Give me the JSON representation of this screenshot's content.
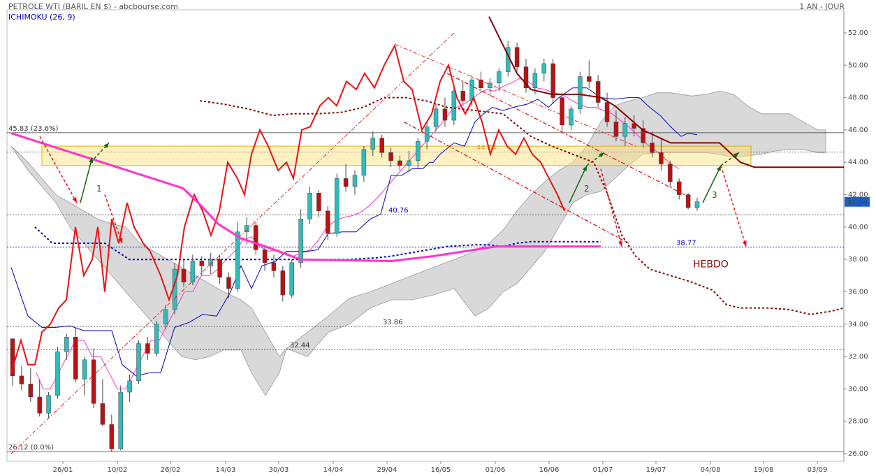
{
  "header": {
    "title": "PETROLE WTI (BARIL EN $) - abcbourse.com",
    "indicator": "ICHIMOKU (26, 9)",
    "period": "1 AN - JOUR"
  },
  "chart_data": {
    "type": "candlestick",
    "ylim": [
      26,
      53
    ],
    "y_ticks": [
      "52.00",
      "50.00",
      "48.00",
      "46.00",
      "44.00",
      "42.00",
      "40.00",
      "38.00",
      "36.00",
      "34.00",
      "32.00",
      "30.00",
      "28.00",
      "26.00"
    ],
    "x_ticks": [
      "26/01",
      "10/02",
      "26/02",
      "14/03",
      "30/03",
      "14/04",
      "29/04",
      "16/05",
      "01/06",
      "16/06",
      "01/07",
      "19/07",
      "04/08",
      "19/08",
      "03/09"
    ],
    "last_price": "41.56",
    "levels": [
      {
        "label": "45.83  (23.6%)",
        "value": 45.83
      },
      {
        "label": "26.12  (0.0%)",
        "value": 26.12
      },
      {
        "label": "44.64",
        "value": 44.64
      },
      {
        "label": "40.76",
        "value": 40.76
      },
      {
        "label": "38.77",
        "value": 38.77
      },
      {
        "label": "33.86",
        "value": 33.86
      },
      {
        "label": "32.44",
        "value": 32.44
      }
    ],
    "zone": {
      "low": 43.8,
      "high": 45.0
    },
    "annotations": [
      "1",
      "2",
      "3",
      "HEBDO"
    ],
    "candles": [
      [
        33.1,
        33.1,
        30.2,
        30.8
      ],
      [
        30.8,
        31.4,
        29.9,
        30.3
      ],
      [
        30.3,
        31.3,
        29.2,
        29.5
      ],
      [
        29.5,
        30.6,
        28.3,
        28.5
      ],
      [
        28.5,
        29.8,
        28.2,
        29.6
      ],
      [
        29.6,
        32.6,
        29.4,
        32.3
      ],
      [
        32.3,
        33.4,
        31.8,
        33.2
      ],
      [
        33.2,
        33.8,
        30.4,
        30.6
      ],
      [
        30.6,
        32.0,
        29.6,
        31.8
      ],
      [
        31.8,
        32.5,
        28.8,
        29.1
      ],
      [
        29.1,
        30.6,
        27.7,
        27.8
      ],
      [
        27.8,
        28.4,
        26.1,
        26.3
      ],
      [
        26.3,
        30.2,
        26.2,
        29.8
      ],
      [
        29.8,
        30.9,
        29.2,
        30.5
      ],
      [
        30.5,
        33.0,
        30.3,
        32.8
      ],
      [
        32.8,
        33.2,
        31.8,
        32.2
      ],
      [
        32.2,
        34.2,
        32.0,
        34.0
      ],
      [
        34.0,
        35.2,
        33.7,
        34.9
      ],
      [
        34.9,
        37.8,
        34.6,
        37.4
      ],
      [
        37.4,
        38.0,
        36.3,
        36.6
      ],
      [
        36.6,
        38.3,
        36.4,
        37.9
      ],
      [
        37.9,
        38.2,
        37.0,
        37.6
      ],
      [
        37.6,
        38.4,
        37.1,
        38.0
      ],
      [
        38.0,
        38.3,
        36.5,
        36.9
      ],
      [
        36.9,
        37.2,
        35.6,
        36.2
      ],
      [
        36.2,
        40.3,
        36.0,
        39.7
      ],
      [
        39.7,
        40.6,
        38.9,
        40.1
      ],
      [
        40.1,
        40.3,
        38.3,
        38.6
      ],
      [
        38.6,
        38.8,
        37.3,
        37.8
      ],
      [
        37.8,
        38.3,
        36.9,
        37.3
      ],
      [
        37.3,
        37.6,
        35.4,
        35.8
      ],
      [
        35.8,
        38.0,
        35.6,
        37.8
      ],
      [
        37.8,
        41.1,
        37.5,
        40.5
      ],
      [
        40.5,
        42.5,
        40.2,
        42.1
      ],
      [
        42.1,
        42.3,
        40.6,
        41.0
      ],
      [
        41.0,
        41.3,
        39.2,
        39.6
      ],
      [
        39.6,
        43.3,
        39.4,
        43.0
      ],
      [
        43.0,
        43.9,
        42.2,
        42.5
      ],
      [
        42.5,
        43.5,
        42.0,
        43.2
      ],
      [
        43.2,
        45.0,
        42.8,
        44.8
      ],
      [
        44.8,
        45.9,
        44.4,
        45.5
      ],
      [
        45.5,
        45.7,
        44.3,
        44.6
      ],
      [
        44.6,
        44.9,
        43.7,
        44.1
      ],
      [
        44.1,
        44.4,
        43.5,
        43.8
      ],
      [
        43.8,
        44.7,
        43.4,
        44.1
      ],
      [
        44.1,
        45.5,
        43.6,
        45.3
      ],
      [
        45.3,
        46.5,
        44.8,
        46.2
      ],
      [
        46.2,
        47.6,
        45.9,
        47.3
      ],
      [
        47.3,
        48.0,
        46.2,
        46.6
      ],
      [
        46.6,
        48.8,
        46.3,
        48.4
      ],
      [
        48.4,
        49.0,
        47.6,
        47.8
      ],
      [
        47.8,
        49.4,
        47.5,
        49.1
      ],
      [
        49.1,
        49.6,
        48.3,
        48.6
      ],
      [
        48.6,
        49.2,
        48.1,
        48.9
      ],
      [
        48.9,
        49.8,
        48.4,
        49.6
      ],
      [
        49.6,
        51.5,
        49.3,
        51.1
      ],
      [
        51.1,
        51.4,
        49.6,
        49.9
      ],
      [
        49.9,
        50.4,
        48.3,
        48.6
      ],
      [
        48.6,
        49.8,
        48.2,
        49.5
      ],
      [
        49.5,
        50.4,
        49.0,
        50.1
      ],
      [
        50.1,
        50.4,
        47.6,
        48.0
      ],
      [
        48.0,
        48.3,
        45.9,
        46.3
      ],
      [
        46.3,
        47.5,
        46.0,
        47.3
      ],
      [
        47.3,
        49.6,
        47.0,
        49.3
      ],
      [
        49.3,
        50.3,
        48.6,
        49.0
      ],
      [
        49.0,
        49.4,
        47.4,
        47.7
      ],
      [
        47.7,
        48.3,
        46.2,
        46.5
      ],
      [
        46.5,
        47.2,
        45.3,
        45.6
      ],
      [
        45.6,
        46.8,
        45.0,
        46.4
      ],
      [
        46.4,
        46.9,
        45.6,
        46.1
      ],
      [
        46.1,
        46.6,
        44.9,
        45.2
      ],
      [
        45.2,
        45.9,
        44.3,
        44.6
      ],
      [
        44.6,
        45.5,
        43.5,
        43.9
      ],
      [
        43.9,
        44.1,
        42.5,
        42.8
      ],
      [
        42.8,
        43.0,
        41.7,
        42.0
      ],
      [
        42.0,
        42.1,
        41.1,
        41.2
      ],
      [
        41.2,
        41.8,
        41.0,
        41.56
      ]
    ],
    "series": [
      {
        "values": [
          [
            52,
            31
          ],
          [
            62,
            30
          ],
          [
            72,
            30
          ],
          [
            84,
            31
          ],
          [
            96,
            32
          ],
          [
            108,
            33
          ],
          [
            120,
            33
          ],
          [
            132,
            32
          ],
          [
            144,
            32
          ],
          [
            156,
            31
          ],
          [
            168,
            30
          ],
          [
            180,
            30
          ],
          [
            192,
            31
          ],
          [
            204,
            32
          ],
          [
            216,
            33
          ],
          [
            228,
            33
          ],
          [
            240,
            34
          ],
          [
            252,
            35
          ],
          [
            264,
            36
          ],
          [
            276,
            36
          ],
          [
            288,
            37
          ],
          [
            300,
            37
          ],
          [
            312,
            37.4
          ],
          [
            324,
            38
          ],
          [
            336,
            38.5
          ],
          [
            348,
            39.2
          ],
          [
            360,
            39.4
          ],
          [
            372,
            38.8
          ],
          [
            384,
            38.5
          ],
          [
            396,
            38.6
          ],
          [
            408,
            38.4
          ],
          [
            420,
            38.2
          ],
          [
            432,
            38.4
          ],
          [
            444,
            38.6
          ],
          [
            456,
            39.2
          ],
          [
            468,
            40
          ],
          [
            480,
            40.4
          ],
          [
            492,
            40.6
          ],
          [
            504,
            40.7
          ],
          [
            516,
            40.9
          ],
          [
            528,
            41.3
          ],
          [
            540,
            41.8
          ],
          [
            552,
            42.4
          ],
          [
            564,
            43
          ],
          [
            576,
            43.6
          ],
          [
            588,
            44.2
          ],
          [
            600,
            44.8
          ],
          [
            612,
            45.4
          ],
          [
            624,
            46
          ],
          [
            636,
            46.6
          ],
          [
            648,
            47.3
          ],
          [
            660,
            47.5
          ],
          [
            672,
            47.8
          ],
          [
            684,
            48.2
          ],
          [
            696,
            48.5
          ],
          [
            708,
            48.4
          ],
          [
            720,
            48.7
          ],
          [
            732,
            48.9
          ],
          [
            744,
            49.2
          ],
          [
            756,
            49
          ],
          [
            768,
            48.6
          ],
          [
            780,
            48.5
          ],
          [
            792,
            48.3
          ],
          [
            804,
            48.2
          ],
          [
            816,
            47.9
          ],
          [
            828,
            47.6
          ],
          [
            840,
            47.4
          ],
          [
            852,
            47.4
          ],
          [
            864,
            47.2
          ],
          [
            876,
            47
          ],
          [
            888,
            46.6
          ],
          [
            900,
            46.2
          ],
          [
            912,
            45.7
          ],
          [
            924,
            45.2
          ],
          [
            936,
            44.8
          ],
          [
            948,
            44.4
          ],
          [
            960,
            43.9
          ],
          [
            972,
            43.6
          ]
        ]
      },
      {
        "values": [
          [
            16,
            37.5
          ],
          [
            40,
            34.5
          ],
          [
            60,
            33.8
          ],
          [
            80,
            33.8
          ],
          [
            100,
            33.9
          ],
          [
            120,
            33.6
          ],
          [
            145,
            33.6
          ],
          [
            160,
            33.6
          ],
          [
            175,
            31.5
          ],
          [
            195,
            30.8
          ],
          [
            215,
            31.0
          ],
          [
            230,
            31.0
          ],
          [
            250,
            33.8
          ],
          [
            270,
            34.1
          ],
          [
            290,
            34.6
          ],
          [
            310,
            34.5
          ],
          [
            330,
            36.0
          ],
          [
            345,
            37.6
          ],
          [
            360,
            36.2
          ],
          [
            375,
            37.6
          ],
          [
            395,
            37.9
          ],
          [
            410,
            38.5
          ],
          [
            425,
            38.5
          ],
          [
            440,
            38.5
          ],
          [
            455,
            38.6
          ],
          [
            470,
            39.6
          ],
          [
            490,
            39.7
          ],
          [
            510,
            39.7
          ],
          [
            530,
            40.5
          ],
          [
            545,
            40.8
          ],
          [
            560,
            43.2
          ],
          [
            575,
            43.2
          ],
          [
            590,
            43.6
          ],
          [
            605,
            43.6
          ],
          [
            615,
            44.0
          ],
          [
            620,
            44.0
          ],
          [
            630,
            44.5
          ],
          [
            650,
            45.2
          ],
          [
            665,
            45.0
          ],
          [
            680,
            46.5
          ],
          [
            695,
            47.1
          ],
          [
            705,
            47.4
          ],
          [
            720,
            47.2
          ],
          [
            735,
            47.4
          ],
          [
            755,
            47.6
          ],
          [
            770,
            47.9
          ],
          [
            785,
            47.4
          ],
          [
            800,
            48.0
          ],
          [
            820,
            48.6
          ],
          [
            840,
            48.6
          ],
          [
            860,
            48.0
          ],
          [
            880,
            47.9
          ],
          [
            900,
            48.0
          ],
          [
            915,
            48.0
          ],
          [
            930,
            47.4
          ],
          [
            945,
            46.9
          ],
          [
            960,
            46.2
          ],
          [
            975,
            45.6
          ],
          [
            985,
            45.8
          ],
          [
            998,
            45.7
          ]
        ]
      },
      {
        "values": [
          [
            50,
            40
          ],
          [
            75,
            39
          ],
          [
            150,
            39
          ],
          [
            185,
            38
          ],
          [
            270,
            38
          ],
          [
            360,
            38
          ],
          [
            410,
            38
          ],
          [
            500,
            38
          ],
          [
            540,
            38.1
          ],
          [
            560,
            38.2
          ],
          [
            600,
            38.5
          ],
          [
            640,
            38.8
          ],
          [
            680,
            38.9
          ],
          [
            700,
            38.9
          ],
          [
            720,
            38.8
          ],
          [
            740,
            39
          ],
          [
            760,
            39.1
          ],
          [
            800,
            39.1
          ],
          [
            830,
            39.1
          ],
          [
            860,
            39.1
          ]
        ]
      }
    ]
  }
}
